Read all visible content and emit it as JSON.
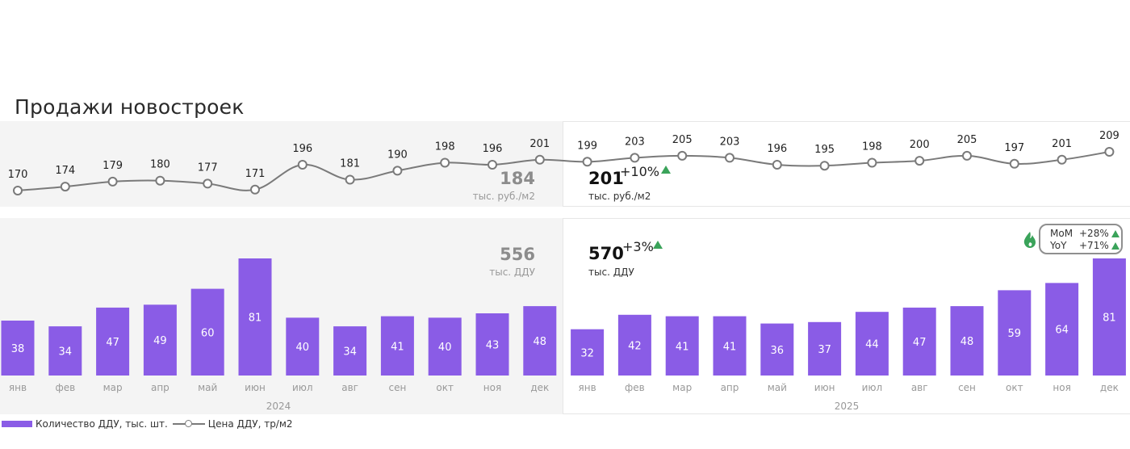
{
  "title": "Продажи новостроек",
  "legend": {
    "bar_label": "Количество ДДУ, тыс. шт.",
    "line_label": "Цена ДДУ, тр/м2"
  },
  "colors": {
    "bar": "#8a5ce6",
    "line": "#7a7a7a",
    "up_arrow": "#3aa35a",
    "fire": "#3aa35a"
  },
  "summaries": {
    "price_2024": {
      "value": "184",
      "unit": "тыс. руб./м2"
    },
    "price_2025": {
      "value": "201",
      "change": "+10%",
      "unit": "тыс. руб./м2"
    },
    "count_2024": {
      "value": "556",
      "unit": "тыс. ДДУ"
    },
    "count_2025": {
      "value": "570",
      "change": "+3%",
      "unit": "тыс. ДДУ"
    }
  },
  "mom_yoy": {
    "mom_label": "MoM",
    "mom_value": "+28%",
    "yoy_label": "YoY",
    "yoy_value": "+71%"
  },
  "chart_data": {
    "type": "bar",
    "years": [
      "2024",
      "2025"
    ],
    "categories": [
      "янв",
      "фев",
      "мар",
      "апр",
      "май",
      "июн",
      "июл",
      "авг",
      "сен",
      "окт",
      "ноя",
      "дек",
      "янв",
      "фев",
      "мар",
      "апр",
      "май",
      "июн",
      "июл",
      "авг",
      "сен",
      "окт",
      "ноя",
      "дек"
    ],
    "series": [
      {
        "name": "Количество ДДУ, тыс. шт.",
        "type": "bar",
        "values": [
          38,
          34,
          47,
          49,
          60,
          81,
          40,
          34,
          41,
          40,
          43,
          48,
          32,
          42,
          41,
          41,
          36,
          37,
          44,
          47,
          48,
          59,
          64,
          81
        ]
      },
      {
        "name": "Цена ДДУ, тр/м2",
        "type": "line",
        "values": [
          170,
          174,
          179,
          180,
          177,
          171,
          196,
          181,
          190,
          198,
          196,
          201,
          199,
          203,
          205,
          203,
          196,
          195,
          198,
          200,
          205,
          197,
          201,
          209
        ]
      }
    ],
    "bar_ylim": [
      0,
      81
    ],
    "line_ylim": [
      170,
      209
    ],
    "grid": false,
    "legend_position": "bottom-left"
  }
}
